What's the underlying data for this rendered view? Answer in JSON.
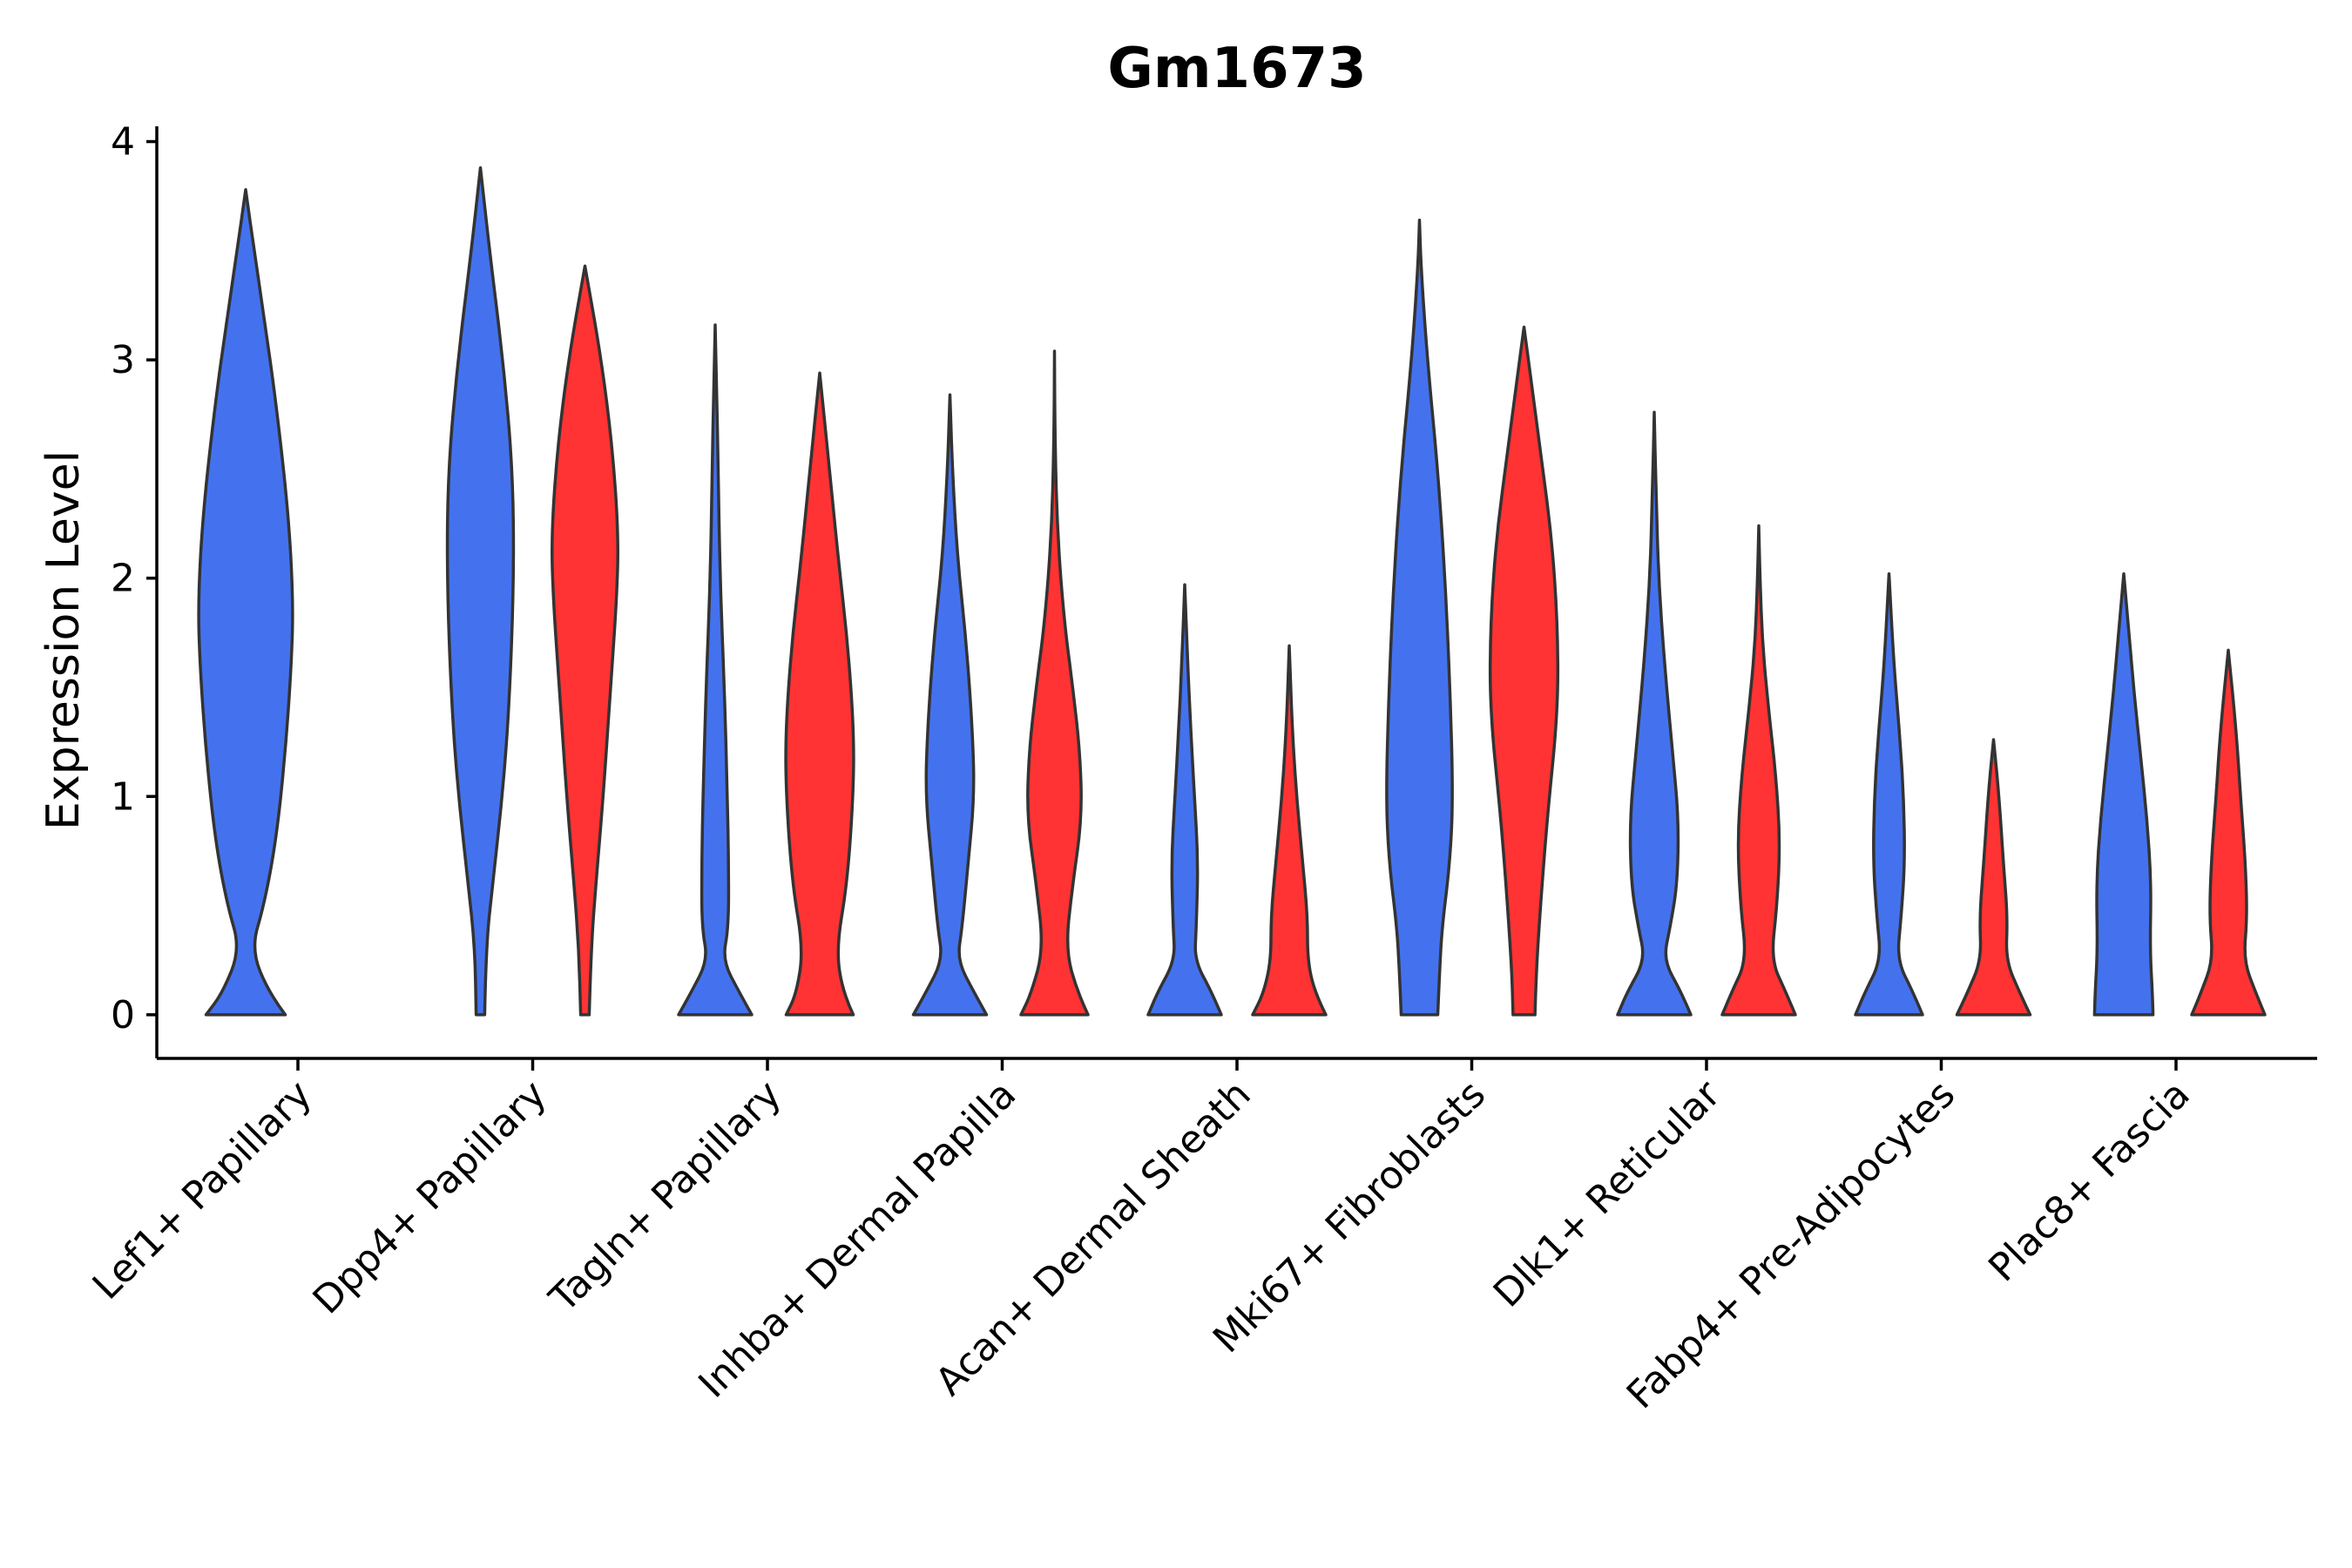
{
  "chart_data": {
    "type": "violin",
    "title": "Gm1673",
    "xlabel": "",
    "ylabel": "Expression Level",
    "ylim": [
      -0.2,
      4.07
    ],
    "yticks": [
      0,
      1,
      2,
      3,
      4
    ],
    "categories": [
      "Lef1+ Papillary",
      "Dpp4+ Papillary",
      "Tagln+ Papillary",
      "Inhba+ Dermal Papilla",
      "Acan+ Dermal Sheath",
      "Mki67+ Fibroblasts",
      "Dlk1+ Reticular",
      "Fabp4+ Pre-Adipocytes",
      "Plac8+ Fascia"
    ],
    "series": [
      {
        "name": "blue group",
        "color": "#4472EE",
        "violins": [
          {
            "category": "Lef1+ Papillary",
            "max": 3.78,
            "profile": [
              [
                0,
                0.65
              ],
              [
                0.1,
                0.38
              ],
              [
                0.3,
                0.09
              ],
              [
                0.5,
                0.3
              ],
              [
                0.8,
                0.5
              ],
              [
                1.2,
                0.65
              ],
              [
                1.6,
                0.75
              ],
              [
                1.9,
                0.78
              ],
              [
                2.3,
                0.7
              ],
              [
                2.8,
                0.5
              ],
              [
                3.2,
                0.3
              ],
              [
                3.5,
                0.14
              ],
              [
                3.78,
                0
              ]
            ]
          },
          {
            "category": "Dpp4+ Papillary",
            "max": 3.88,
            "profile": [
              [
                0,
                0.07
              ],
              [
                0.3,
                0.09
              ],
              [
                0.6,
                0.2
              ],
              [
                1.0,
                0.36
              ],
              [
                1.4,
                0.47
              ],
              [
                2.0,
                0.55
              ],
              [
                2.5,
                0.53
              ],
              [
                3.0,
                0.37
              ],
              [
                3.5,
                0.15
              ],
              [
                3.88,
                0
              ]
            ]
          },
          {
            "category": "Tagln+ Papillary",
            "max": 3.16,
            "profile": [
              [
                0,
                0.6
              ],
              [
                0.1,
                0.4
              ],
              [
                0.25,
                0.12
              ],
              [
                0.4,
                0.22
              ],
              [
                0.7,
                0.22
              ],
              [
                1.0,
                0.2
              ],
              [
                1.5,
                0.15
              ],
              [
                2.0,
                0.08
              ],
              [
                2.5,
                0.05
              ],
              [
                2.9,
                0.02
              ],
              [
                3.16,
                0
              ]
            ]
          },
          {
            "category": "Inhba+ Dermal Papilla",
            "max": 2.84,
            "profile": [
              [
                0,
                0.6
              ],
              [
                0.1,
                0.4
              ],
              [
                0.25,
                0.12
              ],
              [
                0.4,
                0.2
              ],
              [
                0.7,
                0.3
              ],
              [
                1.0,
                0.4
              ],
              [
                1.3,
                0.37
              ],
              [
                1.7,
                0.27
              ],
              [
                2.1,
                0.12
              ],
              [
                2.5,
                0.04
              ],
              [
                2.84,
                0
              ]
            ]
          },
          {
            "category": "Acan+ Dermal Sheath",
            "max": 1.97,
            "profile": [
              [
                0,
                0.6
              ],
              [
                0.1,
                0.45
              ],
              [
                0.25,
                0.16
              ],
              [
                0.4,
                0.19
              ],
              [
                0.7,
                0.22
              ],
              [
                1.0,
                0.16
              ],
              [
                1.3,
                0.1
              ],
              [
                1.6,
                0.05
              ],
              [
                1.97,
                0
              ]
            ]
          },
          {
            "category": "Mki67+ Fibroblasts",
            "max": 3.64,
            "profile": [
              [
                0,
                0.3
              ],
              [
                0.2,
                0.33
              ],
              [
                0.4,
                0.37
              ],
              [
                0.7,
                0.5
              ],
              [
                1.0,
                0.55
              ],
              [
                1.5,
                0.5
              ],
              [
                2.0,
                0.42
              ],
              [
                2.5,
                0.3
              ],
              [
                3.0,
                0.13
              ],
              [
                3.4,
                0.03
              ],
              [
                3.64,
                0
              ]
            ]
          },
          {
            "category": "Dlk1+ Reticular",
            "max": 2.76,
            "profile": [
              [
                0,
                0.6
              ],
              [
                0.1,
                0.45
              ],
              [
                0.25,
                0.15
              ],
              [
                0.4,
                0.26
              ],
              [
                0.6,
                0.38
              ],
              [
                0.9,
                0.4
              ],
              [
                1.2,
                0.3
              ],
              [
                1.6,
                0.17
              ],
              [
                2.0,
                0.07
              ],
              [
                2.4,
                0.03
              ],
              [
                2.76,
                0
              ]
            ]
          },
          {
            "category": "Fabp4+ Pre-Adipocytes",
            "max": 2.02,
            "profile": [
              [
                0,
                0.55
              ],
              [
                0.1,
                0.4
              ],
              [
                0.25,
                0.13
              ],
              [
                0.45,
                0.2
              ],
              [
                0.7,
                0.26
              ],
              [
                1.0,
                0.24
              ],
              [
                1.3,
                0.17
              ],
              [
                1.6,
                0.08
              ],
              [
                2.02,
                0
              ]
            ]
          },
          {
            "category": "Plac8+ Fascia",
            "max": 2.02,
            "profile": [
              [
                0,
                0.48
              ],
              [
                0.1,
                0.47
              ],
              [
                0.3,
                0.43
              ],
              [
                0.6,
                0.45
              ],
              [
                0.9,
                0.38
              ],
              [
                1.2,
                0.27
              ],
              [
                1.5,
                0.16
              ],
              [
                1.8,
                0.07
              ],
              [
                2.02,
                0
              ]
            ]
          }
        ]
      },
      {
        "name": "red group",
        "color": "#FF3333",
        "violins": [
          {
            "category": "Dpp4+ Papillary",
            "max": 3.43,
            "profile": [
              [
                0,
                0.07
              ],
              [
                0.3,
                0.1
              ],
              [
                0.6,
                0.18
              ],
              [
                1.0,
                0.3
              ],
              [
                1.5,
                0.42
              ],
              [
                1.9,
                0.52
              ],
              [
                2.2,
                0.55
              ],
              [
                2.6,
                0.45
              ],
              [
                3.0,
                0.27
              ],
              [
                3.43,
                0
              ]
            ]
          },
          {
            "category": "Tagln+ Papillary",
            "max": 2.94,
            "profile": [
              [
                0,
                0.55
              ],
              [
                0.1,
                0.38
              ],
              [
                0.3,
                0.27
              ],
              [
                0.6,
                0.45
              ],
              [
                1.0,
                0.55
              ],
              [
                1.3,
                0.56
              ],
              [
                1.7,
                0.46
              ],
              [
                2.1,
                0.3
              ],
              [
                2.5,
                0.16
              ],
              [
                2.94,
                0
              ]
            ]
          },
          {
            "category": "Inhba+ Dermal Papilla",
            "max": 3.04,
            "profile": [
              [
                0,
                0.55
              ],
              [
                0.1,
                0.38
              ],
              [
                0.3,
                0.18
              ],
              [
                0.6,
                0.3
              ],
              [
                0.9,
                0.45
              ],
              [
                1.2,
                0.42
              ],
              [
                1.5,
                0.3
              ],
              [
                1.8,
                0.16
              ],
              [
                2.2,
                0.05
              ],
              [
                2.6,
                0.01
              ],
              [
                3.04,
                0
              ]
            ]
          },
          {
            "category": "Acan+ Dermal Sheath",
            "max": 1.69,
            "profile": [
              [
                0,
                0.6
              ],
              [
                0.1,
                0.42
              ],
              [
                0.25,
                0.3
              ],
              [
                0.45,
                0.3
              ],
              [
                0.7,
                0.22
              ],
              [
                1.0,
                0.12
              ],
              [
                1.3,
                0.05
              ],
              [
                1.69,
                0
              ]
            ]
          },
          {
            "category": "Mki67+ Fibroblasts",
            "max": 3.15,
            "profile": [
              [
                0,
                0.18
              ],
              [
                0.2,
                0.2
              ],
              [
                0.5,
                0.27
              ],
              [
                0.9,
                0.38
              ],
              [
                1.4,
                0.56
              ],
              [
                1.8,
                0.55
              ],
              [
                2.2,
                0.45
              ],
              [
                2.6,
                0.26
              ],
              [
                2.9,
                0.12
              ],
              [
                3.15,
                0
              ]
            ]
          },
          {
            "category": "Dlk1+ Reticular",
            "max": 2.24,
            "profile": [
              [
                0,
                0.6
              ],
              [
                0.1,
                0.45
              ],
              [
                0.25,
                0.2
              ],
              [
                0.5,
                0.3
              ],
              [
                0.8,
                0.35
              ],
              [
                1.1,
                0.28
              ],
              [
                1.4,
                0.16
              ],
              [
                1.7,
                0.06
              ],
              [
                2.0,
                0.02
              ],
              [
                2.24,
                0
              ]
            ]
          },
          {
            "category": "Fabp4+ Pre-Adipocytes",
            "max": 1.26,
            "profile": [
              [
                0,
                0.6
              ],
              [
                0.1,
                0.43
              ],
              [
                0.25,
                0.2
              ],
              [
                0.45,
                0.23
              ],
              [
                0.7,
                0.16
              ],
              [
                1.0,
                0.09
              ],
              [
                1.26,
                0
              ]
            ]
          },
          {
            "category": "Plac8+ Fascia",
            "max": 1.67,
            "profile": [
              [
                0,
                0.6
              ],
              [
                0.1,
                0.45
              ],
              [
                0.25,
                0.25
              ],
              [
                0.45,
                0.31
              ],
              [
                0.7,
                0.28
              ],
              [
                1.0,
                0.2
              ],
              [
                1.3,
                0.13
              ],
              [
                1.67,
                0
              ]
            ]
          }
        ]
      }
    ],
    "grid": false,
    "legend": "none"
  }
}
